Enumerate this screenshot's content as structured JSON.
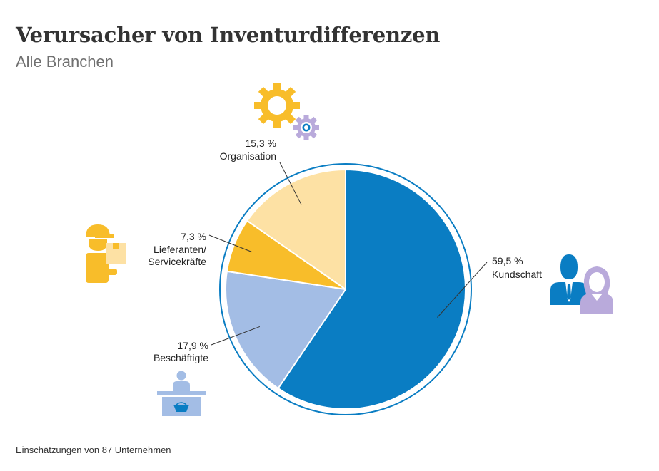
{
  "title": "Verursacher von Inventurdifferenzen",
  "subtitle": "Alle Branchen",
  "footnote": "Einschätzungen von 87 Unternehmen",
  "chart_data": {
    "type": "pie",
    "slices": [
      {
        "label": "Kundschaft",
        "value": 59.5,
        "value_label": "59,5 %",
        "color": "#0a7dc3",
        "icon": "customers-icon"
      },
      {
        "label": "Beschäftigte",
        "value": 17.9,
        "value_label": "17,9 %",
        "color": "#a3bde5",
        "icon": "cashier-desk-icon"
      },
      {
        "label": "Lieferanten/ Servicekräfte",
        "label_lines": [
          "Lieferanten/",
          "Servicekräfte"
        ],
        "value": 7.3,
        "value_label": "7,3 %",
        "color": "#f8bd2a",
        "icon": "delivery-person-icon"
      },
      {
        "label": "Organisation",
        "value": 15.3,
        "value_label": "15,3 %",
        "color": "#fde1a4",
        "icon": "gears-icon"
      }
    ],
    "start_angle_deg": 0,
    "direction": "clockwise",
    "outer_ring_color": "#0a7dc3"
  }
}
